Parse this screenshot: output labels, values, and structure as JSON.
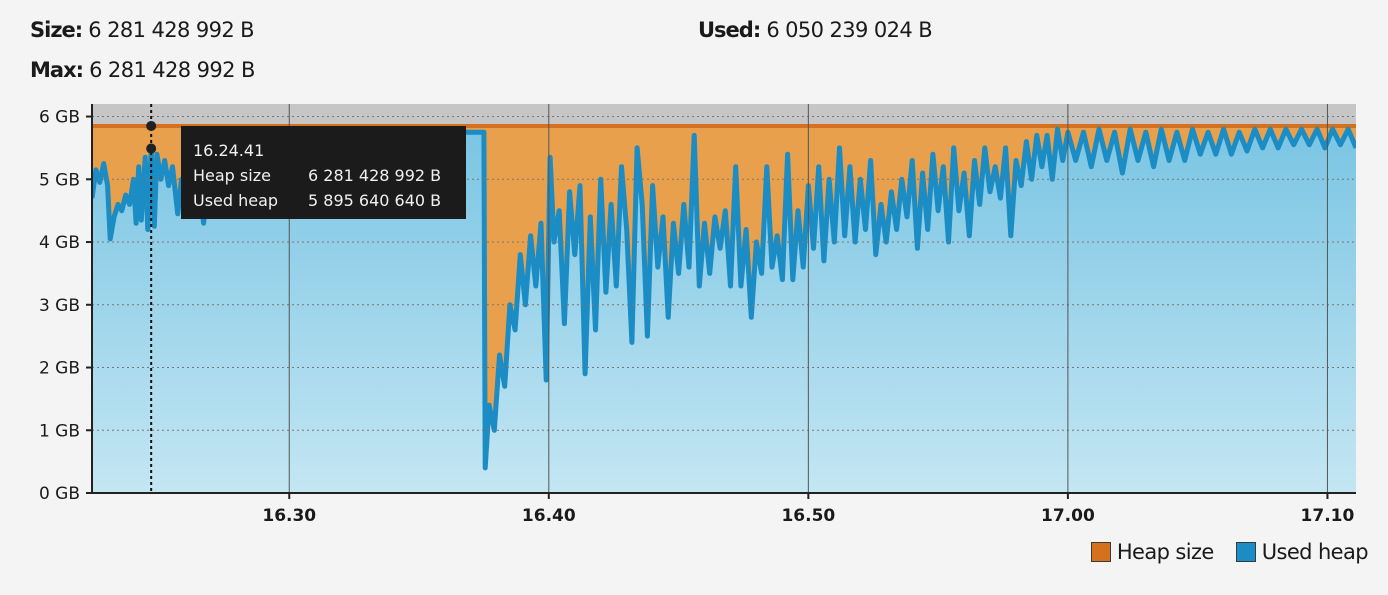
{
  "header": {
    "size_label": "Size:",
    "size_value": "6 281 428 992 B",
    "max_label": "Max:",
    "max_value": "6 281 428 992 B",
    "used_label": "Used:",
    "used_value": "6 050 239 024 B"
  },
  "tooltip": {
    "time": "16.24.41",
    "heap_size_label": "Heap size",
    "heap_size_value": "6 281 428 992 B",
    "used_heap_label": "Used heap",
    "used_heap_value": "5 895 640 640 B"
  },
  "colors": {
    "heap_size": "#e8a04c",
    "heap_size_line": "#d5701f",
    "used_heap_fill_top": "#7ac5e3",
    "used_heap_fill_bottom": "#c4e6f3",
    "used_heap_line": "#1c8cc4",
    "max_band": "#c6c6c6"
  },
  "chart_data": {
    "type": "area",
    "x_unit": "minutes",
    "x_ticks": [
      {
        "label": "16.30",
        "value": 30
      },
      {
        "label": "16.40",
        "value": 40
      },
      {
        "label": "16.50",
        "value": 50
      },
      {
        "label": "17.00",
        "value": 60
      },
      {
        "label": "17.10",
        "value": 70
      }
    ],
    "y_ticks": [
      "0 GB",
      "1 GB",
      "2 GB",
      "3 GB",
      "4 GB",
      "5 GB",
      "6 GB"
    ],
    "xlim": [
      22.4,
      71.1
    ],
    "ylim": [
      0,
      6.2
    ],
    "grid": true,
    "legend_position": "bottom-right",
    "cursor_x": 24.68,
    "series": [
      {
        "name": "Heap size",
        "color": "#e8a04c",
        "points": [
          [
            22.4,
            5.85
          ],
          [
            71.1,
            5.85
          ]
        ]
      },
      {
        "name": "Used heap",
        "color": "#1c8cc4",
        "points": [
          [
            22.4,
            4.7
          ],
          [
            22.55,
            5.15
          ],
          [
            22.7,
            4.95
          ],
          [
            22.85,
            5.25
          ],
          [
            23.0,
            4.9
          ],
          [
            23.1,
            4.05
          ],
          [
            23.25,
            4.4
          ],
          [
            23.4,
            4.6
          ],
          [
            23.55,
            4.5
          ],
          [
            23.7,
            4.75
          ],
          [
            23.85,
            4.6
          ],
          [
            24.0,
            5.0
          ],
          [
            24.1,
            4.3
          ],
          [
            24.2,
            5.2
          ],
          [
            24.3,
            4.35
          ],
          [
            24.45,
            5.35
          ],
          [
            24.55,
            4.2
          ],
          [
            24.68,
            5.49
          ],
          [
            24.8,
            4.25
          ],
          [
            24.9,
            5.4
          ],
          [
            25.05,
            5.0
          ],
          [
            25.2,
            5.3
          ],
          [
            25.35,
            4.9
          ],
          [
            25.5,
            5.2
          ],
          [
            25.7,
            4.45
          ],
          [
            25.85,
            5.0
          ],
          [
            26.0,
            4.7
          ],
          [
            26.15,
            5.1
          ],
          [
            26.3,
            4.5
          ],
          [
            26.5,
            5.0
          ],
          [
            26.7,
            4.3
          ],
          [
            26.85,
            4.9
          ],
          [
            27.0,
            4.5
          ],
          [
            27.2,
            5.2
          ],
          [
            27.35,
            4.7
          ],
          [
            27.5,
            5.4
          ],
          [
            27.7,
            4.8
          ],
          [
            27.9,
            5.5
          ],
          [
            28.1,
            5.0
          ],
          [
            28.3,
            5.6
          ],
          [
            28.5,
            5.1
          ],
          [
            28.7,
            5.65
          ],
          [
            29.0,
            5.3
          ],
          [
            29.3,
            5.7
          ],
          [
            29.6,
            5.4
          ],
          [
            30.0,
            5.75
          ],
          [
            30.5,
            5.5
          ],
          [
            31.0,
            5.75
          ],
          [
            31.5,
            5.6
          ],
          [
            32.0,
            5.75
          ],
          [
            32.5,
            5.6
          ],
          [
            33.0,
            5.75
          ],
          [
            33.5,
            5.65
          ],
          [
            34.0,
            5.75
          ],
          [
            34.5,
            5.7
          ],
          [
            35.0,
            5.75
          ],
          [
            36.0,
            5.75
          ],
          [
            37.0,
            5.75
          ],
          [
            37.5,
            5.75
          ],
          [
            37.55,
            0.4
          ],
          [
            37.7,
            1.4
          ],
          [
            37.9,
            1.0
          ],
          [
            38.1,
            2.2
          ],
          [
            38.3,
            1.7
          ],
          [
            38.5,
            3.0
          ],
          [
            38.7,
            2.6
          ],
          [
            38.9,
            3.8
          ],
          [
            39.1,
            3.0
          ],
          [
            39.3,
            4.1
          ],
          [
            39.5,
            3.3
          ],
          [
            39.7,
            4.3
          ],
          [
            39.9,
            1.8
          ],
          [
            40.05,
            5.35
          ],
          [
            40.2,
            4.0
          ],
          [
            40.4,
            4.5
          ],
          [
            40.6,
            2.7
          ],
          [
            40.8,
            4.8
          ],
          [
            41.0,
            3.8
          ],
          [
            41.2,
            4.9
          ],
          [
            41.4,
            1.9
          ],
          [
            41.6,
            4.4
          ],
          [
            41.8,
            2.6
          ],
          [
            42.0,
            5.0
          ],
          [
            42.2,
            3.2
          ],
          [
            42.4,
            4.6
          ],
          [
            42.6,
            3.3
          ],
          [
            42.8,
            5.2
          ],
          [
            43.0,
            4.2
          ],
          [
            43.2,
            2.4
          ],
          [
            43.4,
            5.5
          ],
          [
            43.6,
            4.6
          ],
          [
            43.8,
            2.5
          ],
          [
            44.0,
            4.9
          ],
          [
            44.2,
            3.6
          ],
          [
            44.4,
            4.4
          ],
          [
            44.6,
            2.8
          ],
          [
            44.8,
            4.3
          ],
          [
            45.0,
            3.5
          ],
          [
            45.2,
            4.6
          ],
          [
            45.4,
            3.6
          ],
          [
            45.6,
            5.7
          ],
          [
            45.8,
            3.3
          ],
          [
            46.0,
            4.3
          ],
          [
            46.2,
            3.5
          ],
          [
            46.4,
            4.4
          ],
          [
            46.6,
            3.9
          ],
          [
            46.8,
            4.5
          ],
          [
            47.0,
            3.3
          ],
          [
            47.2,
            5.2
          ],
          [
            47.4,
            3.3
          ],
          [
            47.6,
            4.2
          ],
          [
            47.8,
            2.8
          ],
          [
            48.0,
            4.0
          ],
          [
            48.2,
            3.5
          ],
          [
            48.4,
            5.2
          ],
          [
            48.6,
            3.6
          ],
          [
            48.8,
            4.1
          ],
          [
            49.0,
            3.4
          ],
          [
            49.2,
            5.4
          ],
          [
            49.4,
            3.4
          ],
          [
            49.6,
            4.5
          ],
          [
            49.8,
            3.6
          ],
          [
            50.0,
            4.9
          ],
          [
            50.2,
            3.9
          ],
          [
            50.4,
            5.2
          ],
          [
            50.6,
            3.7
          ],
          [
            50.8,
            5.0
          ],
          [
            51.0,
            4.0
          ],
          [
            51.2,
            5.5
          ],
          [
            51.4,
            4.1
          ],
          [
            51.6,
            5.2
          ],
          [
            51.8,
            4.0
          ],
          [
            52.0,
            5.0
          ],
          [
            52.2,
            4.2
          ],
          [
            52.4,
            5.3
          ],
          [
            52.6,
            3.8
          ],
          [
            52.8,
            4.6
          ],
          [
            53.0,
            4.0
          ],
          [
            53.2,
            4.8
          ],
          [
            53.4,
            4.2
          ],
          [
            53.6,
            5.0
          ],
          [
            53.8,
            4.4
          ],
          [
            54.0,
            5.3
          ],
          [
            54.2,
            3.9
          ],
          [
            54.4,
            5.1
          ],
          [
            54.6,
            4.2
          ],
          [
            54.8,
            5.4
          ],
          [
            55.0,
            4.5
          ],
          [
            55.2,
            5.2
          ],
          [
            55.4,
            4.0
          ],
          [
            55.6,
            5.5
          ],
          [
            55.8,
            4.5
          ],
          [
            56.0,
            5.1
          ],
          [
            56.2,
            4.1
          ],
          [
            56.4,
            5.3
          ],
          [
            56.6,
            4.6
          ],
          [
            56.8,
            5.5
          ],
          [
            57.0,
            4.8
          ],
          [
            57.2,
            5.2
          ],
          [
            57.4,
            4.7
          ],
          [
            57.6,
            5.5
          ],
          [
            57.8,
            4.1
          ],
          [
            58.0,
            5.3
          ],
          [
            58.2,
            4.9
          ],
          [
            58.4,
            5.6
          ],
          [
            58.6,
            5.0
          ],
          [
            58.8,
            5.7
          ],
          [
            59.0,
            5.2
          ],
          [
            59.2,
            5.7
          ],
          [
            59.4,
            5.0
          ],
          [
            59.6,
            5.8
          ],
          [
            59.8,
            5.3
          ],
          [
            60.0,
            5.75
          ],
          [
            60.3,
            5.3
          ],
          [
            60.6,
            5.75
          ],
          [
            60.9,
            5.2
          ],
          [
            61.2,
            5.8
          ],
          [
            61.5,
            5.3
          ],
          [
            61.8,
            5.75
          ],
          [
            62.1,
            5.1
          ],
          [
            62.4,
            5.8
          ],
          [
            62.7,
            5.3
          ],
          [
            63.0,
            5.75
          ],
          [
            63.3,
            5.2
          ],
          [
            63.6,
            5.8
          ],
          [
            63.9,
            5.3
          ],
          [
            64.2,
            5.75
          ],
          [
            64.5,
            5.3
          ],
          [
            64.8,
            5.8
          ],
          [
            65.1,
            5.4
          ],
          [
            65.4,
            5.75
          ],
          [
            65.7,
            5.4
          ],
          [
            66.0,
            5.8
          ],
          [
            66.3,
            5.4
          ],
          [
            66.6,
            5.75
          ],
          [
            66.9,
            5.45
          ],
          [
            67.2,
            5.8
          ],
          [
            67.5,
            5.5
          ],
          [
            67.8,
            5.8
          ],
          [
            68.1,
            5.5
          ],
          [
            68.4,
            5.8
          ],
          [
            68.7,
            5.55
          ],
          [
            69.0,
            5.8
          ],
          [
            69.3,
            5.55
          ],
          [
            69.6,
            5.8
          ],
          [
            69.9,
            5.5
          ],
          [
            70.2,
            5.8
          ],
          [
            70.5,
            5.55
          ],
          [
            70.8,
            5.8
          ],
          [
            71.1,
            5.5
          ]
        ]
      }
    ]
  }
}
